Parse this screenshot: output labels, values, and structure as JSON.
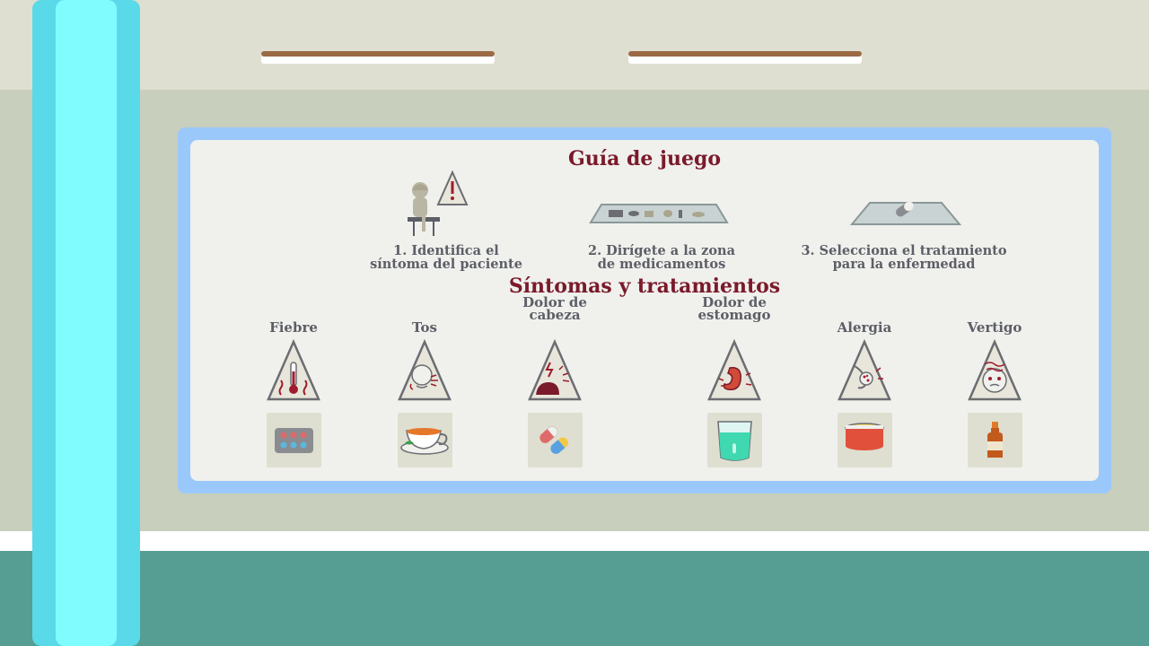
{
  "guide": {
    "title": "Guía de juego",
    "steps": [
      {
        "text": "1. Identifica el síntoma del paciente",
        "line1": "1. Identifica el",
        "line2": "síntoma del paciente",
        "icon": "patient-alert-icon"
      },
      {
        "text": "2. Dirígete a la zona de medicamentos",
        "line1": "2. Dirígete a la zona",
        "line2": "de medicamentos",
        "icon": "medicine-shelf-icon"
      },
      {
        "text": "3. Selecciona el tratamiento para la enfermedad",
        "line1": "3. Selecciona el tratamiento",
        "line2": "para la enfermedad",
        "icon": "pill-tray-icon"
      }
    ]
  },
  "symptoms": {
    "title": "Síntomas y tratamientos",
    "items": [
      {
        "label": "Fiebre",
        "symptom_icon": "thermometer-icon",
        "treatment_icon": "pill-blister-icon"
      },
      {
        "label": "Tos",
        "symptom_icon": "cough-icon",
        "treatment_icon": "tea-cup-icon"
      },
      {
        "label": "Dolor de cabeza",
        "line1": "Dolor de",
        "line2": "cabeza",
        "symptom_icon": "headache-icon",
        "treatment_icon": "capsules-icon"
      },
      {
        "label": "Dolor de estomago",
        "line1": "Dolor de",
        "line2": "estomago",
        "symptom_icon": "stomach-icon",
        "treatment_icon": "glass-of-water-icon"
      },
      {
        "label": "Alergia",
        "symptom_icon": "allergy-icon",
        "treatment_icon": "ointment-tin-icon"
      },
      {
        "label": "Vertigo",
        "symptom_icon": "dizziness-icon",
        "treatment_icon": "syrup-bottle-icon"
      }
    ]
  },
  "colors": {
    "title": "#7a1a2a",
    "text": "#5c5f66",
    "board_frame": "#9ac8fb",
    "board_inner": "#f0f0ed",
    "pillar": "#5ad9e8",
    "floor": "#569e93",
    "wall": "#c8cfbd"
  }
}
